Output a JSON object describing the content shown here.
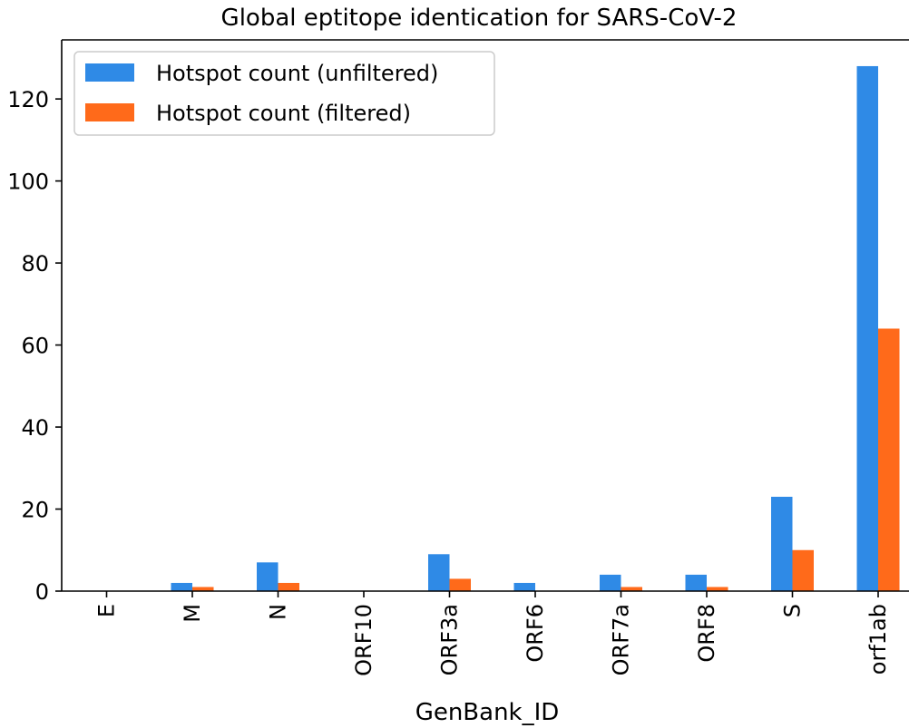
{
  "chart_data": {
    "type": "bar",
    "title": "Global eptitope identication for SARS-CoV-2",
    "xlabel": "GenBank_ID",
    "ylabel": "",
    "categories": [
      "E",
      "M",
      "N",
      "ORF10",
      "ORF3a",
      "ORF6",
      "ORF7a",
      "ORF8",
      "S",
      "orf1ab"
    ],
    "series": [
      {
        "name": "Hotspot count (unfiltered)",
        "color": "#2f8ae6",
        "values": [
          0,
          2,
          7,
          0,
          9,
          2,
          4,
          4,
          23,
          128
        ]
      },
      {
        "name": "Hotspot count (filtered)",
        "color": "#ff6a1a",
        "values": [
          0,
          1,
          2,
          0,
          3,
          0,
          1,
          1,
          10,
          64
        ]
      }
    ],
    "ylim": [
      0,
      134.4
    ],
    "yticks": [
      0,
      20,
      40,
      60,
      80,
      100,
      120
    ],
    "ytick_labels": [
      "0",
      "20",
      "40",
      "60",
      "80",
      "100",
      "120"
    ],
    "grid": false,
    "legend_position": "top-left"
  }
}
